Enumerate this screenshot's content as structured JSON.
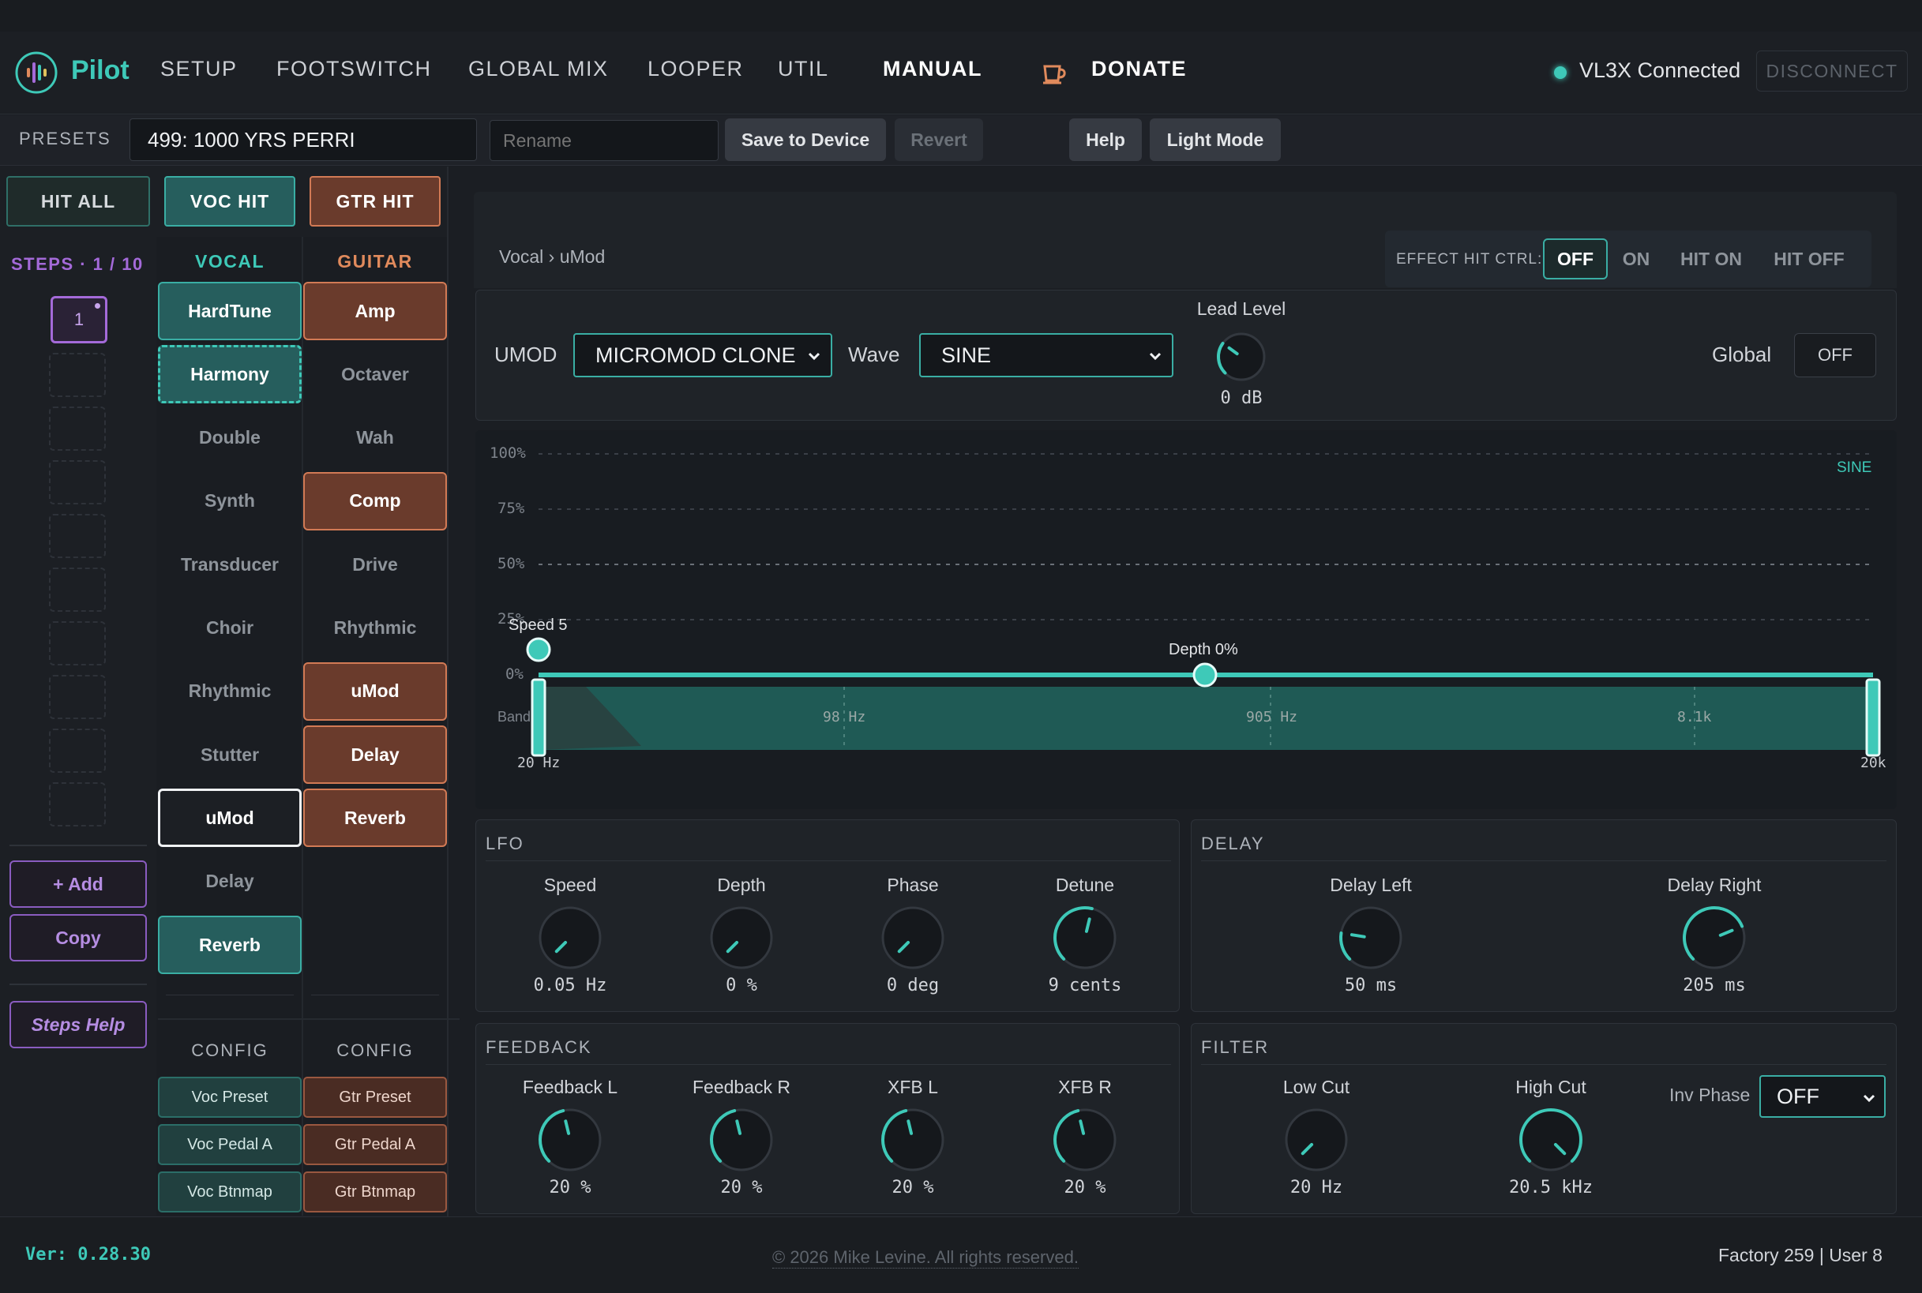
{
  "app": {
    "name": "Pilot"
  },
  "nav": {
    "tabs": [
      "SETUP",
      "FOOTSWITCH",
      "GLOBAL MIX",
      "LOOPER",
      "UTIL",
      "MANUAL"
    ],
    "donate": "DONATE",
    "connection_status": "VL3X Connected",
    "disconnect": "DISCONNECT"
  },
  "presets": {
    "label": "PRESETS",
    "current": "499: 1000 YRS PERRI",
    "rename_placeholder": "Rename",
    "save": "Save to Device",
    "revert": "Revert",
    "help": "Help",
    "light_mode": "Light Mode"
  },
  "hits": {
    "all": "HIT ALL",
    "voc": "VOC HIT",
    "gtr": "GTR HIT"
  },
  "steps": {
    "label": "STEPS · 1 / 10",
    "current": "1",
    "add": "+ Add",
    "copy": "Copy",
    "help": "Steps Help"
  },
  "vocal": {
    "title": "VOCAL",
    "effects": [
      {
        "label": "HardTune",
        "state": "on"
      },
      {
        "label": "Harmony",
        "state": "hit"
      },
      {
        "label": "Double",
        "state": "off"
      },
      {
        "label": "Synth",
        "state": "off"
      },
      {
        "label": "Transducer",
        "state": "off"
      },
      {
        "label": "Choir",
        "state": "off"
      },
      {
        "label": "Rhythmic",
        "state": "off"
      },
      {
        "label": "Stutter",
        "state": "off"
      },
      {
        "label": "uMod",
        "state": "selected"
      },
      {
        "label": "Delay",
        "state": "off"
      },
      {
        "label": "Reverb",
        "state": "on"
      }
    ],
    "config_title": "CONFIG",
    "config": [
      "Voc Preset",
      "Voc Pedal A",
      "Voc Btnmap"
    ]
  },
  "guitar": {
    "title": "GUITAR",
    "effects": [
      {
        "label": "Amp",
        "state": "on"
      },
      {
        "label": "Octaver",
        "state": "off"
      },
      {
        "label": "Wah",
        "state": "off"
      },
      {
        "label": "Comp",
        "state": "on"
      },
      {
        "label": "Drive",
        "state": "off"
      },
      {
        "label": "Rhythmic",
        "state": "off"
      },
      {
        "label": "uMod",
        "state": "on"
      },
      {
        "label": "Delay",
        "state": "on"
      },
      {
        "label": "Reverb",
        "state": "on"
      }
    ],
    "config_title": "CONFIG",
    "config": [
      "Gtr Preset",
      "Gtr Pedal A",
      "Gtr Btnmap"
    ]
  },
  "editor": {
    "breadcrumb": "Vocal › uMod",
    "hit_ctrl": {
      "label": "EFFECT HIT CTRL:",
      "options": [
        "OFF",
        "ON",
        "HIT ON",
        "HIT OFF"
      ],
      "selected": "OFF"
    },
    "umod": {
      "label": "UMOD",
      "value": "MICROMOD CLONE"
    },
    "wave": {
      "label": "Wave",
      "value": "SINE"
    },
    "lead_level": {
      "label": "Lead Level",
      "value": "0 dB"
    },
    "global": {
      "label": "Global",
      "value": "OFF"
    }
  },
  "graph": {
    "y_labels": [
      "100%",
      "75%",
      "50%",
      "25%",
      "0%"
    ],
    "wave_label": "SINE",
    "speed_label": "Speed 5",
    "depth_label": "Depth 0%",
    "band_label": "Band",
    "freq_labels": [
      "98 Hz",
      "905 Hz",
      "8.1k"
    ],
    "range_low": "20 Hz",
    "range_high": "20k"
  },
  "lfo": {
    "title": "LFO",
    "knobs": [
      {
        "label": "Speed",
        "value": "0.05 Hz",
        "level": 0.0
      },
      {
        "label": "Depth",
        "value": "0 %",
        "level": 0.0
      },
      {
        "label": "Phase",
        "value": "0 deg",
        "level": 0.0
      },
      {
        "label": "Detune",
        "value": "9 cents",
        "level": 0.55
      }
    ]
  },
  "delay": {
    "title": "DELAY",
    "knobs": [
      {
        "label": "Delay Left",
        "value": "50 ms",
        "level": 0.2
      },
      {
        "label": "Delay Right",
        "value": "205 ms",
        "level": 0.75
      }
    ]
  },
  "feedback": {
    "title": "FEEDBACK",
    "knobs": [
      {
        "label": "Feedback L",
        "value": "20 %",
        "level": 0.45
      },
      {
        "label": "Feedback R",
        "value": "20 %",
        "level": 0.45
      },
      {
        "label": "XFB L",
        "value": "20 %",
        "level": 0.45
      },
      {
        "label": "XFB R",
        "value": "20 %",
        "level": 0.45
      }
    ]
  },
  "filter": {
    "title": "FILTER",
    "knobs": [
      {
        "label": "Low Cut",
        "value": "20 Hz",
        "level": 0.0
      },
      {
        "label": "High Cut",
        "value": "20.5 kHz",
        "level": 1.0
      }
    ],
    "inv_phase": {
      "label": "Inv Phase",
      "value": "OFF"
    }
  },
  "footer": {
    "version": "Ver: 0.28.30",
    "copyright": "© 2026 Mike Levine. All rights reserved.",
    "counts": "Factory 259 | User 8"
  },
  "colors": {
    "teal": "#3ec9b8",
    "orange": "#e08a5c",
    "purple": "#a46ad9"
  }
}
